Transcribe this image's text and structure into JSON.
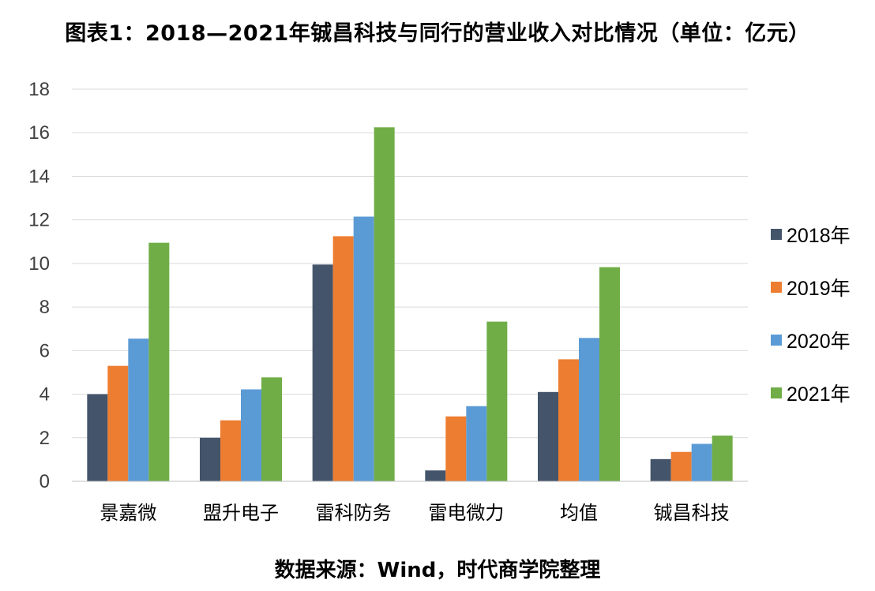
{
  "title": "图表1：2018—2021年铖昌科技与同行的营业收入对比情况（单位：亿元）",
  "source": "数据来源：Wind，时代商学院整理",
  "chart_data": {
    "type": "bar",
    "title": "图表1：2018—2021年铖昌科技与同行的营业收入对比情况（单位：亿元）",
    "xlabel": "",
    "ylabel": "",
    "ylim": [
      0,
      18
    ],
    "yticks": [
      "0",
      "2",
      "4",
      "6",
      "8",
      "10",
      "12",
      "14",
      "16",
      "18"
    ],
    "grid": true,
    "legend_position": "right",
    "categories": [
      "景嘉微",
      "盟升电子",
      "雷科防务",
      "雷电微力",
      "均值",
      "铖昌科技"
    ],
    "series": [
      {
        "name": "2018年",
        "color": "#44546A",
        "values": [
          4.0,
          2.0,
          9.95,
          0.5,
          4.1,
          1.02
        ]
      },
      {
        "name": "2019年",
        "color": "#ED7D31",
        "values": [
          5.3,
          2.8,
          11.25,
          2.98,
          5.6,
          1.35
        ]
      },
      {
        "name": "2020年",
        "color": "#5B9BD5",
        "values": [
          6.55,
          4.22,
          12.15,
          3.45,
          6.58,
          1.72
        ]
      },
      {
        "name": "2021年",
        "color": "#70AD47",
        "values": [
          10.95,
          4.77,
          16.25,
          7.33,
          9.83,
          2.1
        ]
      }
    ]
  }
}
